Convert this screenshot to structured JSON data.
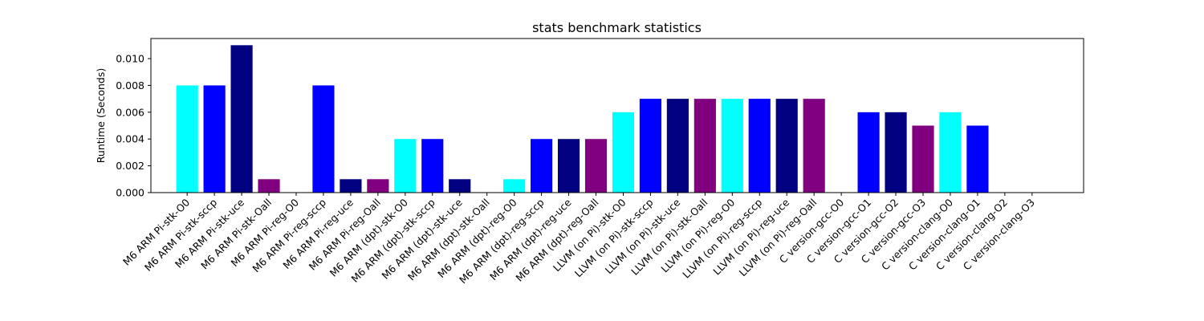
{
  "chart_data": {
    "type": "bar",
    "title": "stats benchmark statistics",
    "xlabel": "",
    "ylabel": "Runtime (Seconds)",
    "ylim": [
      0,
      0.0115
    ],
    "yticks": [
      0.0,
      0.002,
      0.004,
      0.006,
      0.008,
      0.01
    ],
    "ytick_labels": [
      "0.000",
      "0.002",
      "0.004",
      "0.006",
      "0.008",
      "0.010"
    ],
    "grid": false,
    "legend": "none",
    "categories": [
      "M6 ARM Pi-stk-O0",
      "M6 ARM Pi-stk-sccp",
      "M6 ARM Pi-stk-uce",
      "M6 ARM Pi-stk-Oall",
      "M6 ARM Pi-reg-O0",
      "M6 ARM Pi-reg-sccp",
      "M6 ARM Pi-reg-uce",
      "M6 ARM Pi-reg-Oall",
      "M6 ARM (dpt)-stk-O0",
      "M6 ARM (dpt)-stk-sccp",
      "M6 ARM (dpt)-stk-uce",
      "M6 ARM (dpt)-stk-Oall",
      "M6 ARM (dpt)-reg-O0",
      "M6 ARM (dpt)-reg-sccp",
      "M6 ARM (dpt)-reg-uce",
      "M6 ARM (dpt)-reg-Oall",
      "LLVM (on Pi)-stk-O0",
      "LLVM (on Pi)-stk-sccp",
      "LLVM (on Pi)-stk-uce",
      "LLVM (on Pi)-stk-Oall",
      "LLVM (on Pi)-reg-O0",
      "LLVM (on Pi)-reg-sccp",
      "LLVM (on Pi)-reg-uce",
      "LLVM (on Pi)-reg-Oall",
      "C version-gcc-O0",
      "C version-gcc-O1",
      "C version-gcc-O2",
      "C version-gcc-O3",
      "C version-clang-O0",
      "C version-clang-O1",
      "C version-clang-O2",
      "C version-clang-O3"
    ],
    "values": [
      0.008,
      0.008,
      0.011,
      0.001,
      0.0,
      0.008,
      0.001,
      0.001,
      0.004,
      0.004,
      0.001,
      0.0,
      0.001,
      0.004,
      0.004,
      0.004,
      0.006,
      0.007,
      0.007,
      0.007,
      0.007,
      0.007,
      0.007,
      0.007,
      0.0,
      0.006,
      0.006,
      0.005,
      0.006,
      0.005,
      0.0,
      0.0
    ],
    "bar_colors": [
      "#00ffff",
      "#0000ff",
      "#000080",
      "#800080"
    ]
  }
}
